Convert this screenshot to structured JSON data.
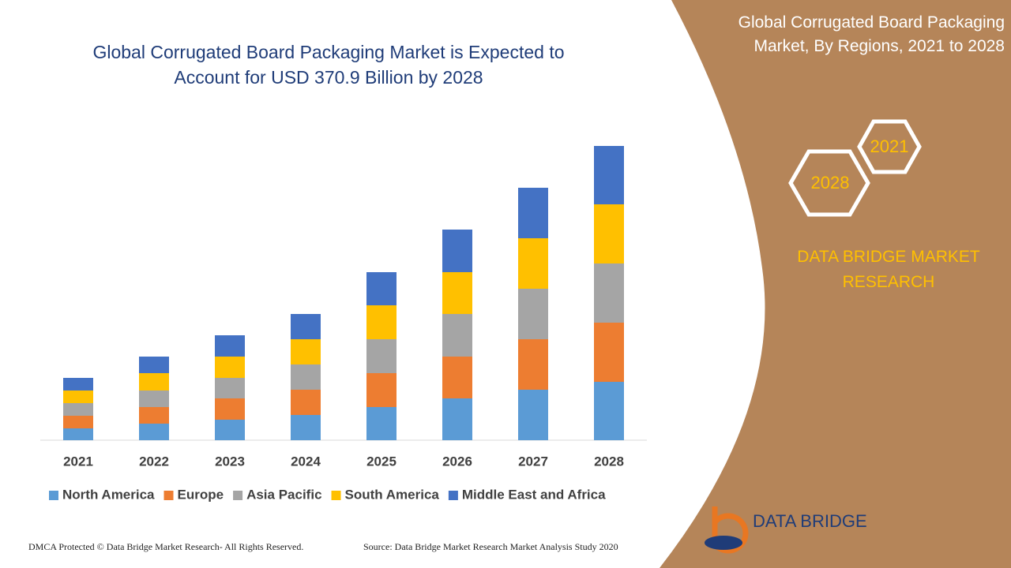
{
  "chart_data": {
    "type": "bar",
    "stacked": true,
    "title": "Global Corrugated Board Packaging Market is Expected to Account for USD 370.9 Billion by 2028",
    "categories": [
      "2021",
      "2022",
      "2023",
      "2024",
      "2025",
      "2026",
      "2027",
      "2028"
    ],
    "series": [
      {
        "name": "North America",
        "color": "#5b9bd5",
        "values": [
          15,
          21,
          26,
          32,
          42,
          53,
          64,
          74
        ]
      },
      {
        "name": "Europe",
        "color": "#ed7d31",
        "values": [
          16,
          21,
          27,
          32,
          43,
          53,
          64,
          75
        ]
      },
      {
        "name": "Asia Pacific",
        "color": "#a5a5a5",
        "values": [
          16,
          21,
          26,
          32,
          43,
          54,
          64,
          75
        ]
      },
      {
        "name": "South America",
        "color": "#ffc000",
        "values": [
          16,
          22,
          27,
          32,
          43,
          53,
          64,
          75
        ]
      },
      {
        "name": "Middle East and Africa",
        "color": "#4472c4",
        "values": [
          16,
          21,
          27,
          32,
          42,
          54,
          64,
          74
        ]
      }
    ],
    "ylim": [
      0,
      380
    ],
    "legend": "bottom"
  },
  "panel": {
    "title": "Global Corrugated Board Packaging Market, By Regions, 2021 to 2028",
    "hex_years": [
      "2021",
      "2028"
    ],
    "brand": "DATA BRIDGE MARKET RESEARCH",
    "logo": "DATA BRIDGE"
  },
  "footer": {
    "left": "DMCA Protected © Data Bridge Market Research- All Rights Reserved.",
    "right": "Source: Data Bridge Market Research Market Analysis Study 2020"
  }
}
